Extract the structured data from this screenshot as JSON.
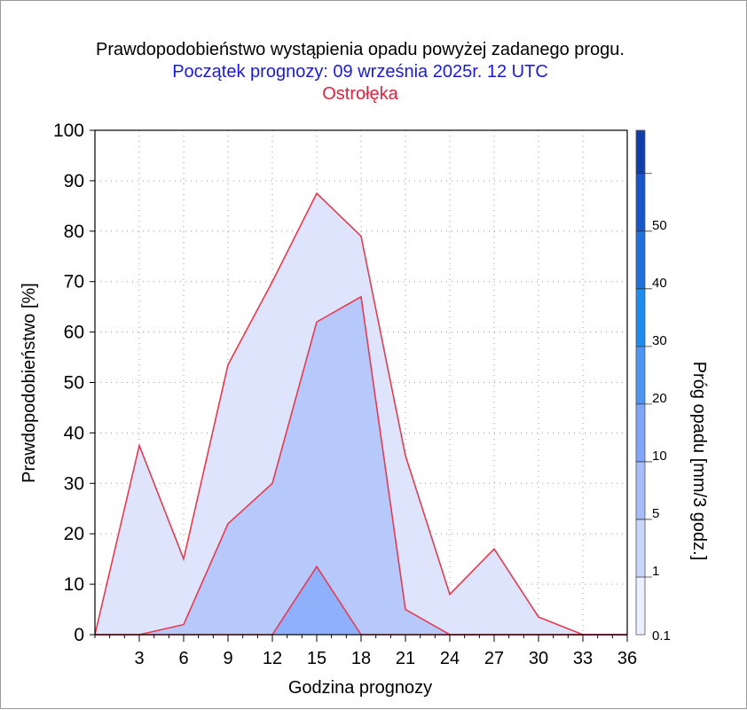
{
  "title": "Prawdopodobieństwo wystąpienia opadu powyżej zadanego progu.",
  "subtitle": "Początek prognozy: 09 września 2025r. 12 UTC",
  "location": "Ostrołęka",
  "chart_data": {
    "type": "area",
    "xlabel": "Godzina prognozy",
    "ylabel": "Prawdopodobieństwo [%]",
    "xlim": [
      0,
      36
    ],
    "ylim": [
      0,
      100
    ],
    "x_ticks": [
      3,
      6,
      9,
      12,
      15,
      18,
      21,
      24,
      27,
      30,
      33,
      36
    ],
    "y_ticks": [
      0,
      10,
      20,
      30,
      40,
      50,
      60,
      70,
      80,
      90,
      100
    ],
    "grid": true,
    "x": [
      0,
      3,
      6,
      9,
      12,
      15,
      18,
      21,
      24,
      27,
      30,
      33,
      36
    ],
    "series": [
      {
        "threshold": 0.1,
        "color": "#dde4fb",
        "values": [
          0,
          37.5,
          15,
          53.5,
          70,
          87.5,
          79,
          35.5,
          8,
          17,
          3.5,
          0,
          0
        ]
      },
      {
        "threshold": 1,
        "color": "#b7c8fb",
        "values": [
          0,
          0,
          2,
          22,
          30,
          62,
          67,
          5,
          0,
          0,
          0,
          0,
          0
        ]
      },
      {
        "threshold": 5,
        "color": "#8fb0fb",
        "values": [
          0,
          0,
          0,
          0,
          0,
          13.5,
          0,
          0,
          0,
          0,
          0,
          0,
          0
        ]
      }
    ],
    "line_color": "#e8394f",
    "colorbar": {
      "label": "Próg opadu [mm/3 godz.]",
      "levels": [
        "0.1",
        "1",
        "5",
        "10",
        "20",
        "30",
        "40",
        "50",
        ""
      ],
      "colors": [
        "#eceffd",
        "#c9d5fb",
        "#a7bdf9",
        "#7fa6f6",
        "#4e95f2",
        "#1e8cef",
        "#1f70dc",
        "#1656c8",
        "#0f3ea8"
      ]
    }
  }
}
